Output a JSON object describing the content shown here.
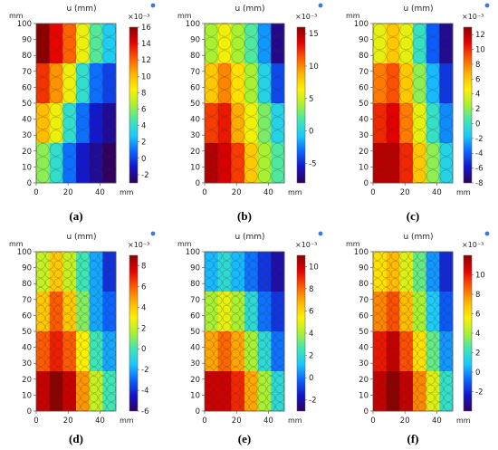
{
  "colormap": [
    "#30005c",
    "#1414c8",
    "#0a64ff",
    "#19c8ff",
    "#3ee6b4",
    "#a8f032",
    "#fff000",
    "#ffb400",
    "#ff5a00",
    "#e60000",
    "#8c0000"
  ],
  "chart_data": [
    {
      "type": "heatmap",
      "panel": "(a)",
      "title": "u (mm)",
      "multiplier": "×10⁻³",
      "xlabel": "",
      "ylabel": "",
      "x_unit": "mm",
      "y_unit": "mm",
      "x_ticks": [
        0,
        20,
        40
      ],
      "y_ticks": [
        0,
        10,
        20,
        30,
        40,
        50,
        60,
        70,
        80,
        90,
        100
      ],
      "xlim": [
        0,
        50
      ],
      "ylim": [
        0,
        100
      ],
      "grid": [
        4,
        6
      ],
      "colorbar": {
        "min": -3,
        "max": 16,
        "ticks": [
          -2,
          0,
          2,
          4,
          6,
          8,
          10,
          12,
          14,
          16
        ]
      },
      "values": [
        [
          16,
          14,
          12,
          8,
          5,
          3
        ],
        [
          13,
          11,
          8,
          4,
          1,
          0
        ],
        [
          10,
          8,
          4,
          1,
          -1,
          -2
        ],
        [
          6,
          4,
          1,
          -1,
          -2,
          -3
        ]
      ]
    },
    {
      "type": "heatmap",
      "panel": "(b)",
      "title": "u (mm)",
      "multiplier": "×10⁻³",
      "xlabel": "",
      "ylabel": "",
      "x_unit": "mm",
      "y_unit": "mm",
      "x_ticks": [
        0,
        20,
        40
      ],
      "y_ticks": [
        0,
        10,
        20,
        30,
        40,
        50,
        60,
        70,
        80,
        90,
        100
      ],
      "xlim": [
        0,
        50
      ],
      "ylim": [
        0,
        100
      ],
      "grid": [
        4,
        6
      ],
      "colorbar": {
        "min": -8,
        "max": 16,
        "ticks": [
          -5,
          0,
          5,
          10,
          15
        ]
      },
      "values": [
        [
          4,
          6,
          4,
          2,
          -2,
          -7
        ],
        [
          8,
          10,
          7,
          4,
          0,
          -4
        ],
        [
          12,
          13,
          9,
          6,
          3,
          0
        ],
        [
          15,
          14,
          12,
          8,
          4,
          2
        ]
      ]
    },
    {
      "type": "heatmap",
      "panel": "(c)",
      "title": "u (mm)",
      "multiplier": "×10⁻³",
      "xlabel": "",
      "ylabel": "",
      "x_unit": "mm",
      "y_unit": "mm",
      "x_ticks": [
        0,
        20,
        40
      ],
      "y_ticks": [
        0,
        10,
        20,
        30,
        40,
        50,
        60,
        70,
        80,
        90,
        100
      ],
      "xlim": [
        0,
        50
      ],
      "ylim": [
        0,
        100
      ],
      "grid": [
        4,
        6
      ],
      "colorbar": {
        "min": -8,
        "max": 13,
        "ticks": [
          -8,
          -6,
          -4,
          -2,
          0,
          2,
          4,
          6,
          8,
          10,
          12
        ]
      },
      "values": [
        [
          4,
          6,
          4,
          0,
          -4,
          -7
        ],
        [
          8,
          9,
          6,
          2,
          -2,
          -5
        ],
        [
          10,
          11,
          8,
          4,
          0,
          -3
        ],
        [
          12,
          12,
          10,
          6,
          2,
          -1
        ]
      ]
    },
    {
      "type": "heatmap",
      "panel": "(d)",
      "title": "u (mm)",
      "multiplier": "×10⁻³",
      "xlabel": "",
      "ylabel": "",
      "x_unit": "mm",
      "y_unit": "mm",
      "x_ticks": [
        0,
        20,
        40
      ],
      "y_ticks": [
        0,
        10,
        20,
        30,
        40,
        50,
        60,
        70,
        80,
        90,
        100
      ],
      "xlim": [
        0,
        50
      ],
      "ylim": [
        0,
        100
      ],
      "grid": [
        4,
        6
      ],
      "colorbar": {
        "min": -6,
        "max": 9,
        "ticks": [
          -6,
          -4,
          -2,
          0,
          2,
          4,
          6,
          8
        ]
      },
      "values": [
        [
          2,
          4,
          2,
          0,
          -2,
          -4
        ],
        [
          4,
          6,
          4,
          1,
          -2,
          -3
        ],
        [
          6,
          7,
          6,
          3,
          0,
          -2
        ],
        [
          8,
          9,
          8,
          5,
          2,
          0
        ]
      ]
    },
    {
      "type": "heatmap",
      "panel": "(e)",
      "title": "u (mm)",
      "multiplier": "×10⁻³",
      "xlabel": "",
      "ylabel": "",
      "x_unit": "mm",
      "y_unit": "mm",
      "x_ticks": [
        0,
        20,
        40
      ],
      "y_ticks": [
        0,
        10,
        20,
        30,
        40,
        50,
        60,
        70,
        80,
        90,
        100
      ],
      "xlim": [
        0,
        50
      ],
      "ylim": [
        0,
        100
      ],
      "grid": [
        4,
        6
      ],
      "colorbar": {
        "min": -3,
        "max": 11,
        "ticks": [
          -2,
          0,
          2,
          4,
          6,
          8,
          10
        ]
      },
      "values": [
        [
          1,
          2,
          1,
          0,
          -1,
          -2
        ],
        [
          4,
          5,
          4,
          2,
          0,
          -1
        ],
        [
          7,
          8,
          7,
          4,
          2,
          0
        ],
        [
          10,
          10,
          9,
          7,
          4,
          2
        ]
      ]
    },
    {
      "type": "heatmap",
      "panel": "(f)",
      "title": "u (mm)",
      "multiplier": "×10⁻³",
      "xlabel": "",
      "ylabel": "",
      "x_unit": "mm",
      "y_unit": "mm",
      "x_ticks": [
        0,
        20,
        40
      ],
      "y_ticks": [
        0,
        10,
        20,
        30,
        40,
        50,
        60,
        70,
        80,
        90,
        100
      ],
      "xlim": [
        0,
        50
      ],
      "ylim": [
        0,
        100
      ],
      "grid": [
        4,
        6
      ],
      "colorbar": {
        "min": -4,
        "max": 12,
        "ticks": [
          -2,
          0,
          2,
          4,
          6,
          8,
          10
        ]
      },
      "values": [
        [
          6,
          7,
          5,
          3,
          0,
          -2
        ],
        [
          8,
          9,
          7,
          4,
          1,
          -1
        ],
        [
          10,
          11,
          9,
          6,
          3,
          0
        ],
        [
          11,
          12,
          11,
          8,
          5,
          2
        ]
      ]
    }
  ]
}
